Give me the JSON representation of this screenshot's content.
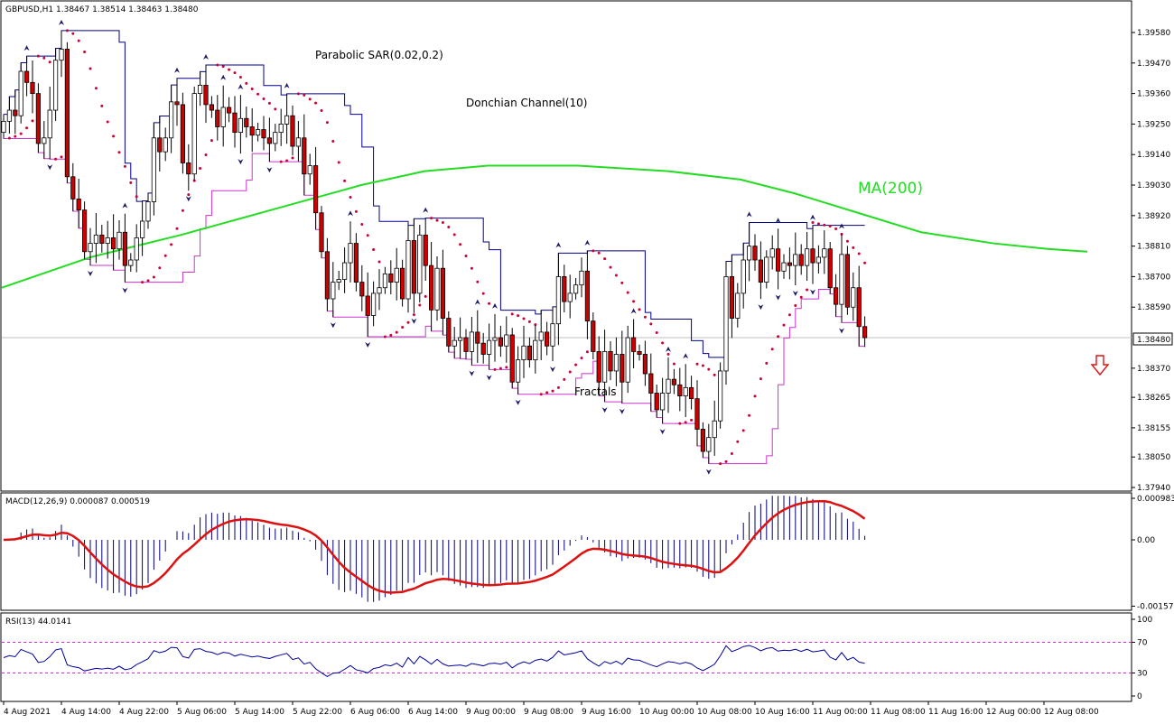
{
  "header": {
    "symbol_line": "GBPUSD,H1  1.38467 1.38514 1.38463 1.38480"
  },
  "colors": {
    "bull_candle": "#ffffff",
    "bear_candle": "#cc0000",
    "candle_outline": "#000000",
    "ma": "#22dd22",
    "donchian_upper": "#00008b",
    "donchian_lower": "#cc33cc",
    "sar": "#cc0033",
    "fractal": "#1a1a66",
    "macd_signal": "#dd1111",
    "macd_hist": "#000080",
    "rsi_line": "#000099",
    "rsi_levels": "#cc33cc",
    "price_label_bg": "#ffffff"
  },
  "annotations": {
    "sar_label": "Parabolic SAR(0.02,0.2)",
    "donchian_label": "Donchian Channel(10)",
    "ma_label": "MA(200)",
    "fractals_label": "Fractals",
    "signal_arrow": "down-arrow-icon"
  },
  "main_price_axis": [
    "1.39580",
    "1.39470",
    "1.39360",
    "1.39250",
    "1.39140",
    "1.39030",
    "1.38920",
    "1.38810",
    "1.38700",
    "1.38590",
    "1.38370",
    "1.38265",
    "1.38155",
    "1.38050",
    "1.37940"
  ],
  "current_price": "1.38480",
  "macd": {
    "label": "MACD(12,26,9) 0.000087 0.000519",
    "axis": [
      "0.000983",
      "0.00",
      "-0.00157"
    ]
  },
  "rsi": {
    "label": "RSI(13) 44.0141",
    "axis": [
      "100",
      "70",
      "30",
      "0"
    ],
    "levels": [
      70,
      30
    ]
  },
  "time_axis": [
    "4 Aug 2021",
    "4 Aug 14:00",
    "4 Aug 22:00",
    "5 Aug 06:00",
    "5 Aug 14:00",
    "5 Aug 22:00",
    "6 Aug 06:00",
    "6 Aug 14:00",
    "9 Aug 00:00",
    "9 Aug 08:00",
    "9 Aug 16:00",
    "10 Aug 00:00",
    "10 Aug 08:00",
    "10 Aug 16:00",
    "11 Aug 00:00",
    "11 Aug 08:00",
    "11 Aug 16:00",
    "12 Aug 00:00",
    "12 Aug 08:00"
  ],
  "chart_data": {
    "type": "candlestick",
    "symbol": "GBPUSD",
    "timeframe": "H1",
    "ylim": [
      1.3794,
      1.3969
    ],
    "last_close": 1.3848,
    "closes": [
      1.3926,
      1.393,
      1.3928,
      1.3944,
      1.394,
      1.3936,
      1.3918,
      1.392,
      1.393,
      1.3948,
      1.3952,
      1.3906,
      1.3898,
      1.3894,
      1.3879,
      1.3882,
      1.3885,
      1.3882,
      1.3884,
      1.388,
      1.3886,
      1.3874,
      1.3876,
      1.3884,
      1.389,
      1.3897,
      1.392,
      1.3915,
      1.392,
      1.3933,
      1.3932,
      1.3911,
      1.3907,
      1.3936,
      1.3939,
      1.3932,
      1.393,
      1.3924,
      1.3931,
      1.3929,
      1.3922,
      1.3927,
      1.3924,
      1.3921,
      1.3923,
      1.392,
      1.3918,
      1.3922,
      1.3925,
      1.3928,
      1.3917,
      1.392,
      1.3907,
      1.391,
      1.3893,
      1.3879,
      1.3862,
      1.3868,
      1.3869,
      1.3875,
      1.3882,
      1.3868,
      1.3863,
      1.3856,
      1.3864,
      1.3866,
      1.3871,
      1.3868,
      1.3873,
      1.3862,
      1.3883,
      1.3864,
      1.3885,
      1.3874,
      1.3858,
      1.3873,
      1.3855,
      1.3845,
      1.3847,
      1.3848,
      1.3843,
      1.385,
      1.3846,
      1.3842,
      1.3847,
      1.3848,
      1.3845,
      1.3849,
      1.3832,
      1.384,
      1.3845,
      1.384,
      1.3847,
      1.385,
      1.3845,
      1.3853,
      1.387,
      1.3861,
      1.3864,
      1.3867,
      1.3872,
      1.3854,
      1.3843,
      1.3832,
      1.3843,
      1.3836,
      1.3842,
      1.3832,
      1.3848,
      1.3843,
      1.3842,
      1.3835,
      1.3828,
      1.3822,
      1.3828,
      1.3833,
      1.3831,
      1.3827,
      1.383,
      1.3826,
      1.3815,
      1.3807,
      1.3812,
      1.3818,
      1.3836,
      1.387,
      1.3855,
      1.3864,
      1.3876,
      1.3881,
      1.3876,
      1.3868,
      1.3877,
      1.388,
      1.3872,
      1.3875,
      1.3874,
      1.3878,
      1.3874,
      1.388,
      1.3875,
      1.3877,
      1.388,
      1.3866,
      1.386,
      1.3878,
      1.3859,
      1.3866,
      1.3852,
      1.3848
    ]
  }
}
